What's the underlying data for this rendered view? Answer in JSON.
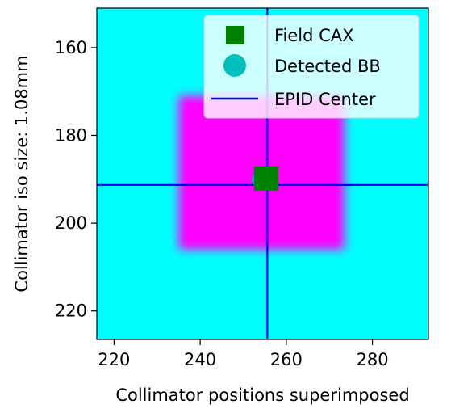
{
  "chart_data": {
    "type": "heatmap",
    "xlabel": "Collimator positions superimposed",
    "ylabel": "Collimator iso size: 1.08mm",
    "xlim": [
      216,
      293
    ],
    "ylim": [
      226.5,
      151
    ],
    "x_ticks": [
      220,
      240,
      260,
      280
    ],
    "y_ticks": [
      160,
      180,
      200,
      220
    ],
    "grid": false,
    "legend_position": "top-right",
    "image": {
      "background_color": "#00ffff",
      "field_color": "#ff00ff",
      "field_extent": {
        "x": [
          235,
          273.5
        ],
        "y": [
          171,
          206
        ]
      }
    },
    "series": [
      {
        "name": "Field CAX",
        "type": "marker",
        "marker": "square",
        "color": "#008000",
        "x": 255.3,
        "y": 189.8
      },
      {
        "name": "Detected BB",
        "type": "marker",
        "marker": "circle",
        "color": "#00bfbf",
        "x": 254.5,
        "y": 190.1
      },
      {
        "name": "EPID Center",
        "type": "crosshair",
        "color": "#0000ff",
        "x": 255.6,
        "y": 191.3
      }
    ]
  }
}
